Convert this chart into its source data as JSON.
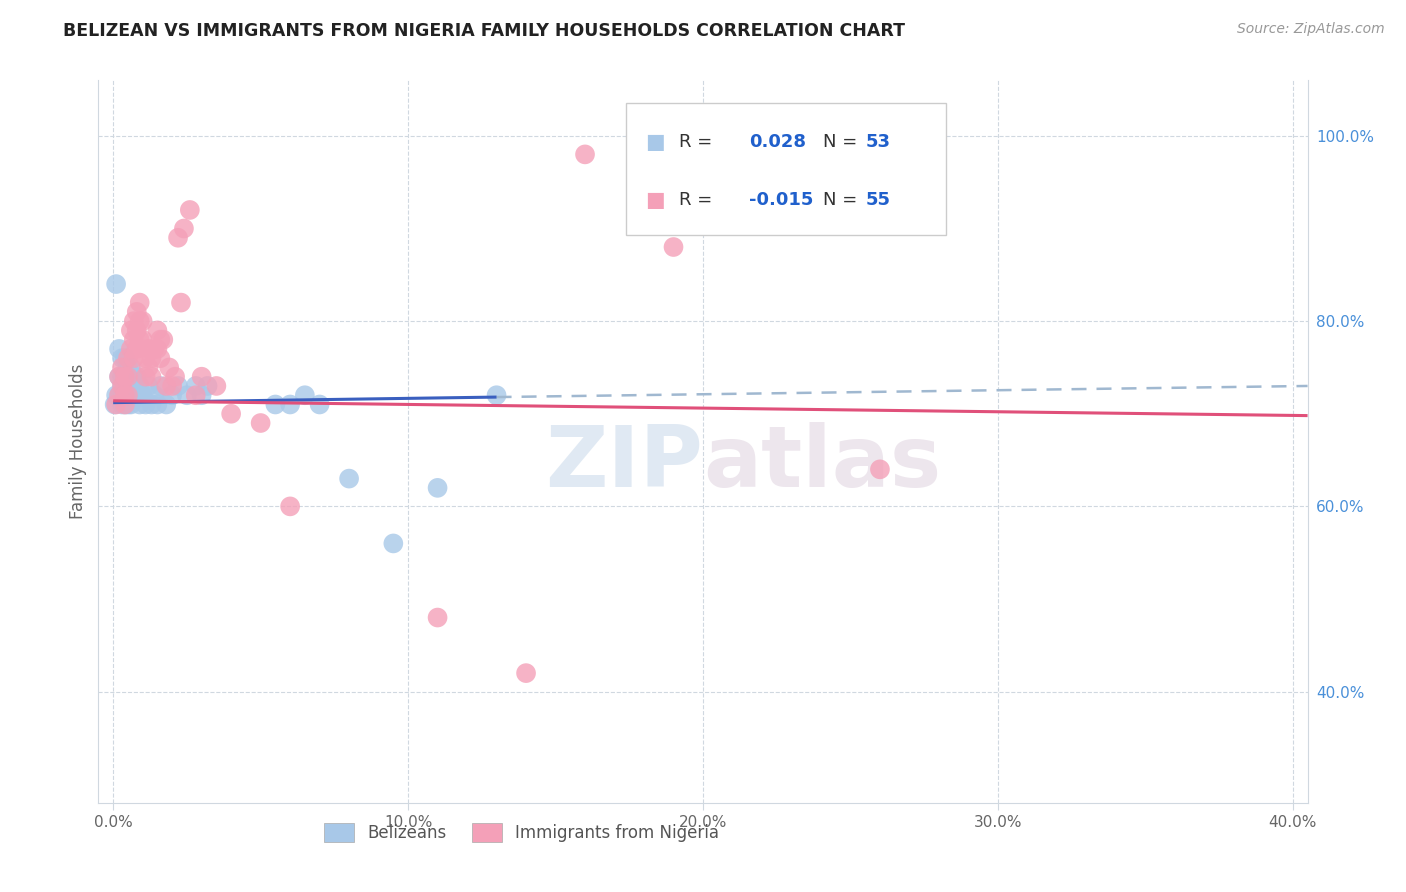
{
  "title": "BELIZEAN VS IMMIGRANTS FROM NIGERIA FAMILY HOUSEHOLDS CORRELATION CHART",
  "source": "Source: ZipAtlas.com",
  "ylabel": "Family Households",
  "right_yticks": [
    0.4,
    0.6,
    0.8,
    1.0
  ],
  "right_yticklabels": [
    "40.0%",
    "60.0%",
    "80.0%",
    "100.0%"
  ],
  "xticks": [
    0.0,
    0.1,
    0.2,
    0.3,
    0.4
  ],
  "xticklabels": [
    "0.0%",
    "10.0%",
    "20.0%",
    "30.0%",
    "40.0%"
  ],
  "xlim": [
    -0.005,
    0.405
  ],
  "ylim": [
    0.28,
    1.06
  ],
  "legend_r_blue": "0.028",
  "legend_n_blue": "53",
  "legend_r_pink": "-0.015",
  "legend_n_pink": "55",
  "blue_color": "#a8c8e8",
  "pink_color": "#f4a0b8",
  "trendline_blue": "#3a5fbf",
  "trendline_pink": "#e0507a",
  "trendline_gray_dash": "#a0b8d0",
  "watermark_zip": "ZIP",
  "watermark_atlas": "atlas",
  "blue_x": [
    0.0005,
    0.001,
    0.001,
    0.002,
    0.002,
    0.002,
    0.003,
    0.003,
    0.003,
    0.003,
    0.004,
    0.004,
    0.004,
    0.004,
    0.004,
    0.005,
    0.005,
    0.005,
    0.005,
    0.005,
    0.006,
    0.006,
    0.006,
    0.006,
    0.007,
    0.007,
    0.007,
    0.008,
    0.008,
    0.009,
    0.009,
    0.01,
    0.011,
    0.012,
    0.013,
    0.014,
    0.015,
    0.016,
    0.018,
    0.02,
    0.022,
    0.025,
    0.028,
    0.03,
    0.032,
    0.055,
    0.06,
    0.065,
    0.07,
    0.08,
    0.095,
    0.11,
    0.13
  ],
  "blue_y": [
    0.71,
    0.84,
    0.72,
    0.77,
    0.74,
    0.72,
    0.76,
    0.74,
    0.73,
    0.71,
    0.76,
    0.74,
    0.73,
    0.72,
    0.71,
    0.75,
    0.74,
    0.73,
    0.72,
    0.71,
    0.75,
    0.74,
    0.73,
    0.71,
    0.74,
    0.73,
    0.72,
    0.74,
    0.72,
    0.73,
    0.71,
    0.72,
    0.71,
    0.73,
    0.71,
    0.72,
    0.71,
    0.73,
    0.71,
    0.72,
    0.73,
    0.72,
    0.73,
    0.72,
    0.73,
    0.71,
    0.71,
    0.72,
    0.71,
    0.63,
    0.56,
    0.62,
    0.72
  ],
  "pink_x": [
    0.001,
    0.002,
    0.002,
    0.003,
    0.003,
    0.004,
    0.004,
    0.004,
    0.005,
    0.005,
    0.005,
    0.006,
    0.006,
    0.007,
    0.007,
    0.007,
    0.008,
    0.008,
    0.008,
    0.009,
    0.009,
    0.009,
    0.01,
    0.01,
    0.011,
    0.011,
    0.012,
    0.012,
    0.013,
    0.013,
    0.014,
    0.015,
    0.015,
    0.016,
    0.016,
    0.017,
    0.018,
    0.019,
    0.02,
    0.021,
    0.022,
    0.023,
    0.024,
    0.026,
    0.028,
    0.03,
    0.035,
    0.04,
    0.05,
    0.06,
    0.11,
    0.14,
    0.16,
    0.19,
    0.26
  ],
  "pink_y": [
    0.71,
    0.74,
    0.72,
    0.75,
    0.73,
    0.74,
    0.72,
    0.71,
    0.76,
    0.74,
    0.72,
    0.79,
    0.77,
    0.8,
    0.78,
    0.76,
    0.81,
    0.79,
    0.77,
    0.82,
    0.8,
    0.78,
    0.8,
    0.78,
    0.76,
    0.74,
    0.77,
    0.75,
    0.76,
    0.74,
    0.77,
    0.79,
    0.77,
    0.78,
    0.76,
    0.78,
    0.73,
    0.75,
    0.73,
    0.74,
    0.89,
    0.82,
    0.9,
    0.92,
    0.72,
    0.74,
    0.73,
    0.7,
    0.69,
    0.6,
    0.48,
    0.42,
    0.98,
    0.88,
    0.64
  ],
  "blue_trend_x0": 0.0,
  "blue_trend_x1": 0.13,
  "blue_trend_y0": 0.712,
  "blue_trend_y1": 0.718,
  "gray_trend_x0": 0.13,
  "gray_trend_x1": 0.405,
  "gray_trend_y0": 0.718,
  "gray_trend_y1": 0.73,
  "pink_trend_x0": 0.0,
  "pink_trend_x1": 0.405,
  "pink_trend_y0": 0.714,
  "pink_trend_y1": 0.698
}
